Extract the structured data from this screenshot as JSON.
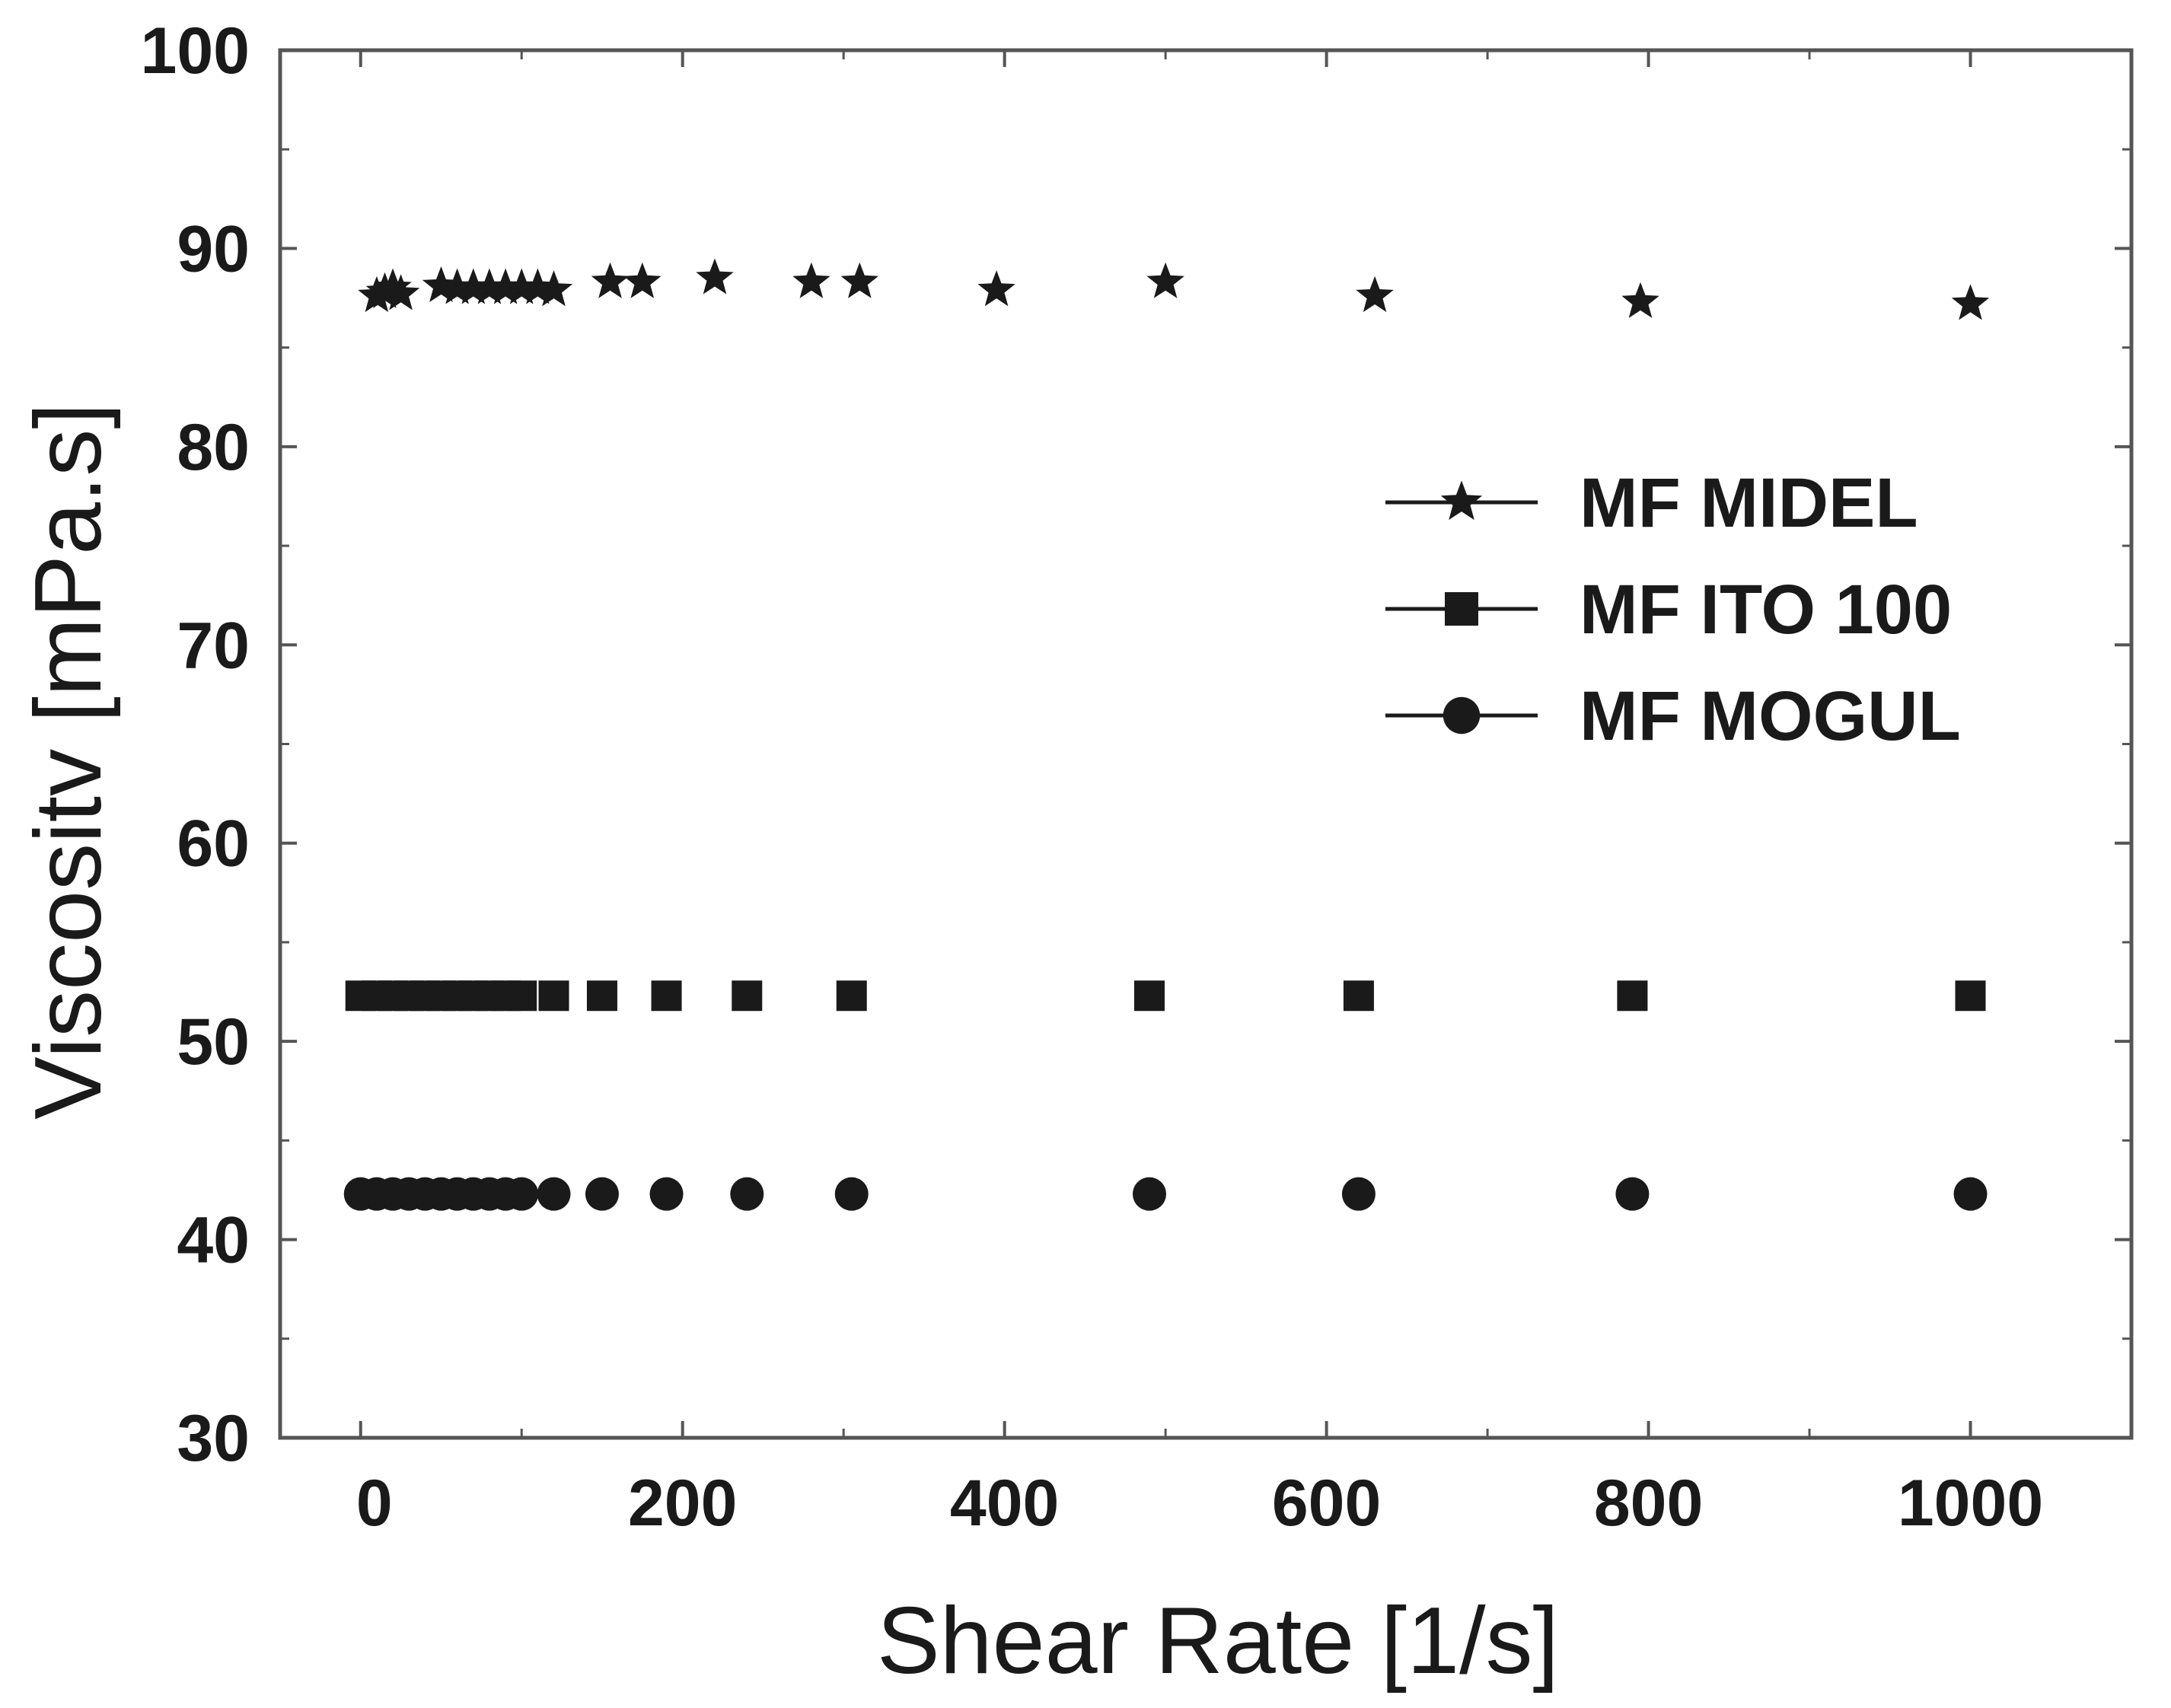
{
  "chart_data": {
    "type": "scatter",
    "title": "",
    "xlabel": "Shear Rate [1/s]",
    "ylabel": "Viscositv [mPa.s]",
    "xlim": [
      -50,
      1100
    ],
    "ylim": [
      30,
      100
    ],
    "xticks": [
      0,
      200,
      400,
      600,
      800,
      1000
    ],
    "yticks": [
      30,
      40,
      50,
      60,
      70,
      80,
      90,
      100
    ],
    "x_tick_labels": [
      "0",
      "200",
      "400",
      "600",
      "800",
      "1000"
    ],
    "y_tick_labels": [
      "30",
      "40",
      "50",
      "60",
      "70",
      "80",
      "90",
      "100"
    ],
    "legend_position": "center-right",
    "colors": {
      "marks": "#1a1a1a",
      "axis": "#555555",
      "background": "#ffffff"
    },
    "series": [
      {
        "name": "MF MIDEL",
        "marker": "star",
        "x": [
          10,
          15,
          20,
          25,
          50,
          60,
          70,
          80,
          90,
          100,
          110,
          120,
          155,
          175,
          220,
          280,
          310,
          395,
          500,
          630,
          795,
          1000
        ],
        "y": [
          87.6,
          87.8,
          88.0,
          87.7,
          88.1,
          88.0,
          88.0,
          88.0,
          88.0,
          88.0,
          88.0,
          87.9,
          88.3,
          88.3,
          88.5,
          88.3,
          88.3,
          87.9,
          88.3,
          87.6,
          87.3,
          87.2
        ]
      },
      {
        "name": "MF ITO 100",
        "marker": "square",
        "x": [
          0,
          10,
          20,
          30,
          40,
          50,
          60,
          70,
          80,
          90,
          100,
          120,
          150,
          190,
          240,
          305,
          490,
          620,
          790,
          1000
        ],
        "y": [
          52.3,
          52.3,
          52.3,
          52.3,
          52.3,
          52.3,
          52.3,
          52.3,
          52.3,
          52.3,
          52.3,
          52.3,
          52.3,
          52.3,
          52.3,
          52.3,
          52.3,
          52.3,
          52.3,
          52.3
        ]
      },
      {
        "name": "MF MOGUL",
        "marker": "circle",
        "x": [
          0,
          10,
          20,
          30,
          40,
          50,
          60,
          70,
          80,
          90,
          100,
          120,
          150,
          190,
          240,
          305,
          490,
          620,
          790,
          1000
        ],
        "y": [
          42.3,
          42.3,
          42.3,
          42.3,
          42.3,
          42.3,
          42.3,
          42.3,
          42.3,
          42.3,
          42.3,
          42.3,
          42.3,
          42.3,
          42.3,
          42.3,
          42.3,
          42.3,
          42.3,
          42.3
        ]
      }
    ]
  }
}
